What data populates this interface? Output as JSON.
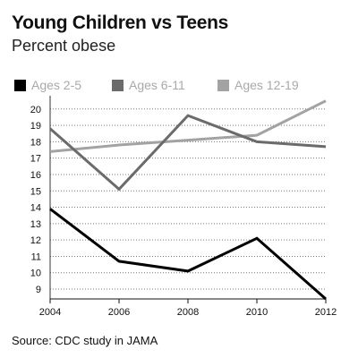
{
  "header": {
    "title": "Young Children vs Teens",
    "subtitle": "Percent obese"
  },
  "footer": {
    "source": "Source: CDC study in JAMA"
  },
  "colors": {
    "ages_2_5": "#000000",
    "ages_6_11": "#6b6b6b",
    "ages_12_19": "#a3a3a3",
    "grid": "#777777",
    "legend_text": "#a9a9a9"
  },
  "chart_data": {
    "type": "line",
    "title": "Young Children vs Teens",
    "subtitle": "Percent obese",
    "xlabel": "",
    "ylabel": "",
    "x": [
      2004,
      2006,
      2008,
      2010,
      2012
    ],
    "x_ticks": [
      "2004",
      "2006",
      "2008",
      "2010",
      "2012"
    ],
    "y_ticks": [
      "9",
      "10",
      "11",
      "12",
      "13",
      "14",
      "15",
      "16",
      "17",
      "18",
      "19",
      "20"
    ],
    "xlim": [
      2004,
      2012
    ],
    "ylim": [
      8.4,
      20.7
    ],
    "grid": "horizontal-dotted",
    "legend_position": "top",
    "series": [
      {
        "name": "Ages 2-5",
        "values": [
          13.9,
          10.7,
          10.1,
          12.1,
          8.4
        ]
      },
      {
        "name": "Ages 6-11",
        "values": [
          18.8,
          15.1,
          19.6,
          18.0,
          17.7
        ]
      },
      {
        "name": "Ages 12-19",
        "values": [
          17.4,
          17.8,
          18.1,
          18.4,
          20.5
        ]
      }
    ]
  }
}
